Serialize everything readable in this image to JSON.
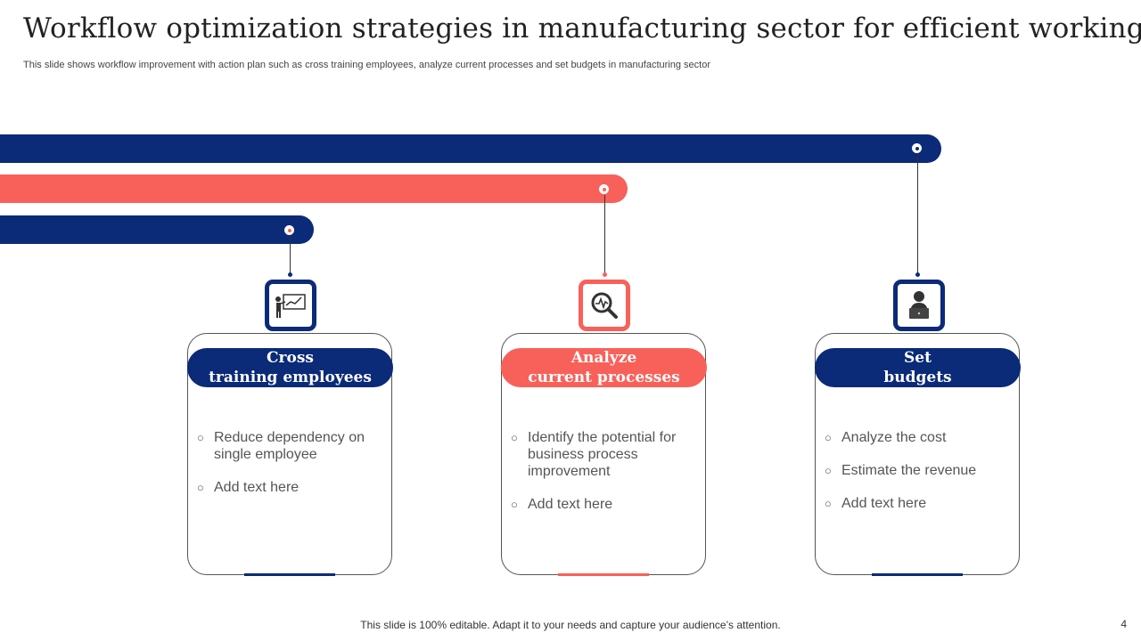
{
  "slide": {
    "title": "Workflow optimization strategies in manufacturing sector for efficient working",
    "subtitle": "This slide shows workflow improvement with action plan such as cross training employees, analyze current processes and set budgets in manufacturing sector",
    "footer": "This slide is 100% editable. Adapt it to your needs and capture your audience’s attention.",
    "page_number": "4"
  },
  "colors": {
    "navy": "#0b2a78",
    "coral": "#f8615a"
  },
  "cards": [
    {
      "icon": "presentation-chart-icon",
      "heading_line1": "Cross",
      "heading_line2": "training employees",
      "bullets": [
        "Reduce dependency  on single employee",
        "Add text here"
      ]
    },
    {
      "icon": "magnifier-pulse-icon",
      "heading_line1": "Analyze",
      "heading_line2": "current processes",
      "bullets": [
        "Identify  the potential for business process improvement",
        "Add text here"
      ]
    },
    {
      "icon": "person-laptop-icon",
      "heading_line1": "Set",
      "heading_line2": "budgets",
      "bullets": [
        "Analyze  the cost",
        "Estimate the revenue",
        "Add text here"
      ]
    }
  ]
}
